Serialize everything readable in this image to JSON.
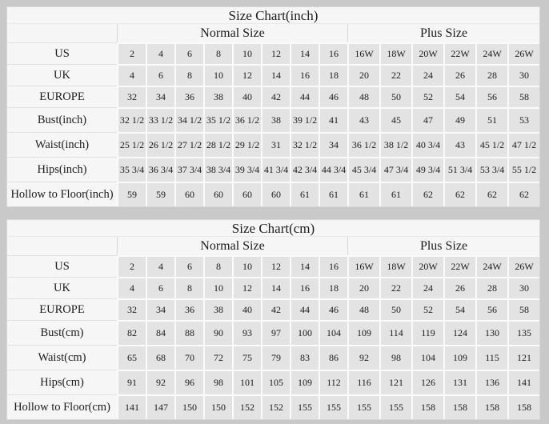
{
  "colors": {
    "page_bg": "#c9c9c9",
    "panel_bg": "#f6f6f6",
    "cell_bg": "#e3e3e3",
    "grid_line": "#fafafa",
    "faint_line": "#e0e0e0",
    "text": "#1c1c1c"
  },
  "tables": [
    {
      "title": "Size Chart(inch)",
      "groups": {
        "normal": "Normal Size",
        "plus": "Plus Size"
      },
      "normal_columns": [
        "2",
        "4",
        "6",
        "8",
        "10",
        "12",
        "14",
        "16"
      ],
      "plus_columns": [
        "16W",
        "18W",
        "20W",
        "22W",
        "24W",
        "26W"
      ],
      "rows": [
        {
          "label": "US",
          "cells": [
            "2",
            "4",
            "6",
            "8",
            "10",
            "12",
            "14",
            "16",
            "16W",
            "18W",
            "20W",
            "22W",
            "24W",
            "26W"
          ]
        },
        {
          "label": "UK",
          "cells": [
            "4",
            "6",
            "8",
            "10",
            "12",
            "14",
            "16",
            "18",
            "20",
            "22",
            "24",
            "26",
            "28",
            "30"
          ]
        },
        {
          "label": "EUROPE",
          "cells": [
            "32",
            "34",
            "36",
            "38",
            "40",
            "42",
            "44",
            "46",
            "48",
            "50",
            "52",
            "54",
            "56",
            "58"
          ]
        },
        {
          "label": "Bust(inch)",
          "cells": [
            "32 1/2",
            "33 1/2",
            "34 1/2",
            "35 1/2",
            "36 1/2",
            "38",
            "39 1/2",
            "41",
            "43",
            "45",
            "47",
            "49",
            "51",
            "53"
          ]
        },
        {
          "label": "Waist(inch)",
          "cells": [
            "25 1/2",
            "26 1/2",
            "27 1/2",
            "28 1/2",
            "29 1/2",
            "31",
            "32 1/2",
            "34",
            "36 1/2",
            "38 1/2",
            "40 3/4",
            "43",
            "45 1/2",
            "47 1/2"
          ]
        },
        {
          "label": "Hips(inch)",
          "cells": [
            "35 3/4",
            "36 3/4",
            "37 3/4",
            "38 3/4",
            "39 3/4",
            "41 3/4",
            "42 3/4",
            "44 3/4",
            "45 3/4",
            "47 3/4",
            "49 3/4",
            "51 3/4",
            "53 3/4",
            "55 1/2"
          ]
        },
        {
          "label": "Hollow to Floor(inch)",
          "cells": [
            "59",
            "59",
            "60",
            "60",
            "60",
            "60",
            "61",
            "61",
            "61",
            "61",
            "62",
            "62",
            "62",
            "62"
          ]
        }
      ]
    },
    {
      "title": "Size Chart(cm)",
      "groups": {
        "normal": "Normal Size",
        "plus": "Plus Size"
      },
      "normal_columns": [
        "2",
        "4",
        "6",
        "8",
        "10",
        "12",
        "14",
        "16"
      ],
      "plus_columns": [
        "16W",
        "18W",
        "20W",
        "22W",
        "24W",
        "26W"
      ],
      "rows": [
        {
          "label": "US",
          "cells": [
            "2",
            "4",
            "6",
            "8",
            "10",
            "12",
            "14",
            "16",
            "16W",
            "18W",
            "20W",
            "22W",
            "24W",
            "26W"
          ]
        },
        {
          "label": "UK",
          "cells": [
            "4",
            "6",
            "8",
            "10",
            "12",
            "14",
            "16",
            "18",
            "20",
            "22",
            "24",
            "26",
            "28",
            "30"
          ]
        },
        {
          "label": "EUROPE",
          "cells": [
            "32",
            "34",
            "36",
            "38",
            "40",
            "42",
            "44",
            "46",
            "48",
            "50",
            "52",
            "54",
            "56",
            "58"
          ]
        },
        {
          "label": "Bust(cm)",
          "cells": [
            "82",
            "84",
            "88",
            "90",
            "93",
            "97",
            "100",
            "104",
            "109",
            "114",
            "119",
            "124",
            "130",
            "135"
          ]
        },
        {
          "label": "Waist(cm)",
          "cells": [
            "65",
            "68",
            "70",
            "72",
            "75",
            "79",
            "83",
            "86",
            "92",
            "98",
            "104",
            "109",
            "115",
            "121"
          ]
        },
        {
          "label": "Hips(cm)",
          "cells": [
            "91",
            "92",
            "96",
            "98",
            "101",
            "105",
            "109",
            "112",
            "116",
            "121",
            "126",
            "131",
            "136",
            "141"
          ]
        },
        {
          "label": "Hollow to Floor(cm)",
          "cells": [
            "141",
            "147",
            "150",
            "150",
            "152",
            "152",
            "155",
            "155",
            "155",
            "155",
            "158",
            "158",
            "158",
            "158"
          ]
        }
      ]
    }
  ]
}
